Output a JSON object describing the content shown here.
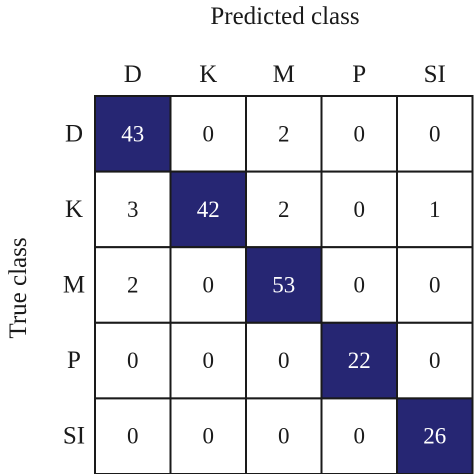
{
  "chart_data": {
    "type": "heatmap",
    "xlabel": "Predicted class",
    "ylabel": "True class",
    "x_categories": [
      "D",
      "K",
      "M",
      "P",
      "SI"
    ],
    "y_categories": [
      "D",
      "K",
      "M",
      "P",
      "SI"
    ],
    "values": [
      [
        43,
        0,
        2,
        0,
        0
      ],
      [
        3,
        42,
        2,
        0,
        1
      ],
      [
        2,
        0,
        53,
        0,
        0
      ],
      [
        0,
        0,
        0,
        22,
        0
      ],
      [
        0,
        0,
        0,
        0,
        26
      ]
    ],
    "highlight": "diagonal",
    "colors": {
      "highlight_fill": "#262673",
      "highlight_text": "#ffffff",
      "cell_fill": "#ffffff",
      "cell_text": "#1a1a1a",
      "grid": "#1a1a1a"
    }
  }
}
